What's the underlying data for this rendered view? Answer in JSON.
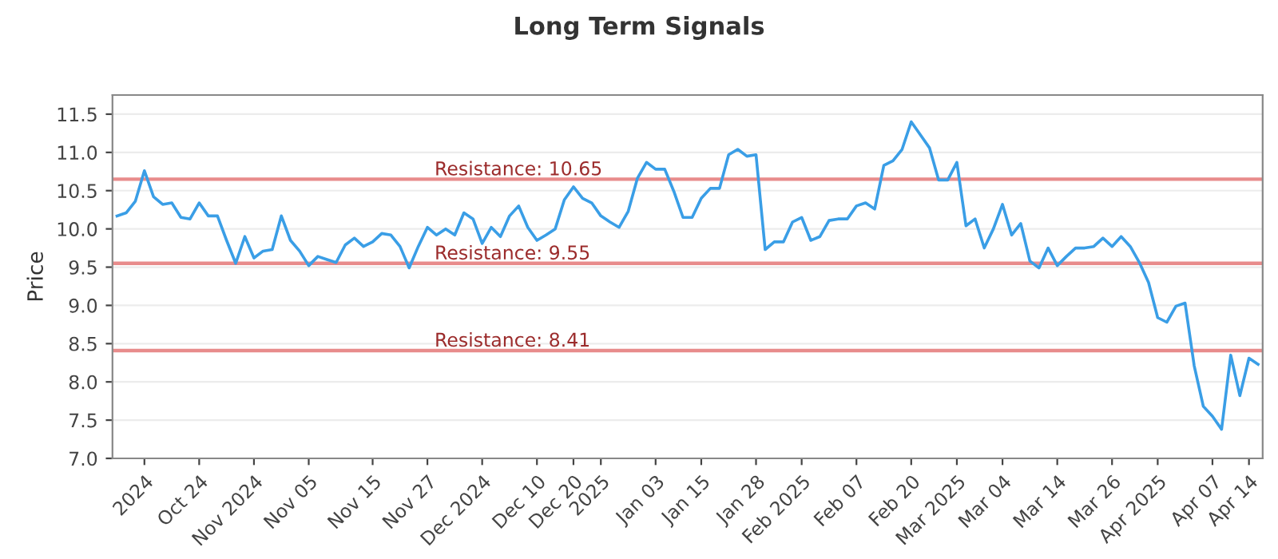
{
  "chart_data": {
    "type": "line",
    "title": "Long Term Signals",
    "ylabel": "Price",
    "categories": [
      null,
      null,
      null,
      "2024",
      null,
      null,
      null,
      null,
      null,
      "Oct 24",
      null,
      null,
      null,
      null,
      null,
      "Nov 2024",
      null,
      null,
      null,
      null,
      null,
      "Nov 05",
      null,
      null,
      null,
      null,
      null,
      null,
      "Nov 15",
      null,
      null,
      null,
      null,
      null,
      "Nov 27",
      null,
      null,
      null,
      null,
      null,
      "Dec 2024",
      null,
      null,
      null,
      null,
      null,
      "Dec 10",
      null,
      null,
      null,
      "Dec 20",
      null,
      null,
      "2025",
      null,
      null,
      null,
      null,
      null,
      "Jan 03",
      null,
      null,
      null,
      null,
      "Jan 15",
      null,
      null,
      null,
      null,
      null,
      "Jan 28",
      null,
      null,
      null,
      null,
      "Feb 2025",
      null,
      null,
      null,
      null,
      null,
      "Feb 07",
      null,
      null,
      null,
      null,
      null,
      "Feb 20",
      null,
      null,
      null,
      null,
      "Mar 2025",
      null,
      null,
      null,
      null,
      "Mar 04",
      null,
      null,
      null,
      null,
      null,
      "Mar 14",
      null,
      null,
      null,
      null,
      null,
      "Mar 26",
      null,
      null,
      null,
      null,
      "Apr 2025",
      null,
      null,
      null,
      null,
      null,
      "Apr 07",
      null,
      null,
      null,
      "Apr 14",
      null
    ],
    "series": [
      {
        "color": "#3a9ee6",
        "values": [
          10.17,
          10.21,
          10.36,
          10.76,
          10.42,
          10.32,
          10.34,
          10.15,
          10.13,
          10.34,
          10.17,
          10.17,
          9.85,
          9.55,
          9.9,
          9.62,
          9.71,
          9.73,
          10.17,
          9.85,
          9.71,
          9.52,
          9.64,
          9.6,
          9.56,
          9.79,
          9.88,
          9.77,
          9.83,
          9.94,
          9.92,
          9.77,
          9.49,
          9.77,
          10.02,
          9.92,
          10.0,
          9.92,
          10.21,
          10.13,
          9.81,
          10.02,
          9.9,
          10.17,
          10.3,
          10.02,
          9.85,
          9.92,
          10.0,
          10.38,
          10.55,
          10.4,
          10.34,
          10.17,
          10.09,
          10.02,
          10.23,
          10.66,
          10.87,
          10.78,
          10.78,
          10.49,
          10.15,
          10.15,
          10.4,
          10.53,
          10.53,
          10.97,
          11.04,
          10.95,
          10.97,
          9.73,
          9.83,
          9.83,
          10.09,
          10.15,
          9.85,
          9.9,
          10.11,
          10.13,
          10.13,
          10.3,
          10.34,
          10.26,
          10.83,
          10.89,
          11.04,
          11.4,
          11.23,
          11.06,
          10.64,
          10.64,
          10.87,
          10.04,
          10.13,
          9.75,
          10.0,
          10.32,
          9.92,
          10.07,
          9.58,
          9.49,
          9.75,
          9.52,
          9.64,
          9.75,
          9.75,
          9.77,
          9.88,
          9.77,
          9.9,
          9.77,
          9.56,
          9.3,
          8.84,
          8.78,
          8.99,
          9.03,
          8.21,
          7.68,
          7.55,
          7.38,
          8.35,
          7.82,
          8.31,
          8.23
        ]
      }
    ],
    "ylim": [
      7.0,
      11.75
    ],
    "yticks": [
      {
        "value": 7.0,
        "label": "7.0"
      },
      {
        "value": 7.5,
        "label": "7.5"
      },
      {
        "value": 8.0,
        "label": "8.0"
      },
      {
        "value": 8.5,
        "label": "8.5"
      },
      {
        "value": 9.0,
        "label": "9.0"
      },
      {
        "value": 9.5,
        "label": "9.5"
      },
      {
        "value": 10.0,
        "label": "10.0"
      },
      {
        "value": 10.5,
        "label": "10.5"
      },
      {
        "value": 11.0,
        "label": "11.0"
      },
      {
        "value": 11.5,
        "label": "11.5"
      }
    ],
    "grid": "y",
    "legend": false,
    "marker": "none",
    "line_style": "solid",
    "ref_lines": [
      {
        "axis": "y",
        "value": 10.65,
        "label": "Resistance: 10.65",
        "color": "#e88c8c"
      },
      {
        "axis": "y",
        "value": 9.55,
        "label": "Resistance: 9.55",
        "color": "#e88c8c"
      },
      {
        "axis": "y",
        "value": 8.41,
        "label": "Resistance: 8.41",
        "color": "#e88c8c"
      }
    ]
  }
}
